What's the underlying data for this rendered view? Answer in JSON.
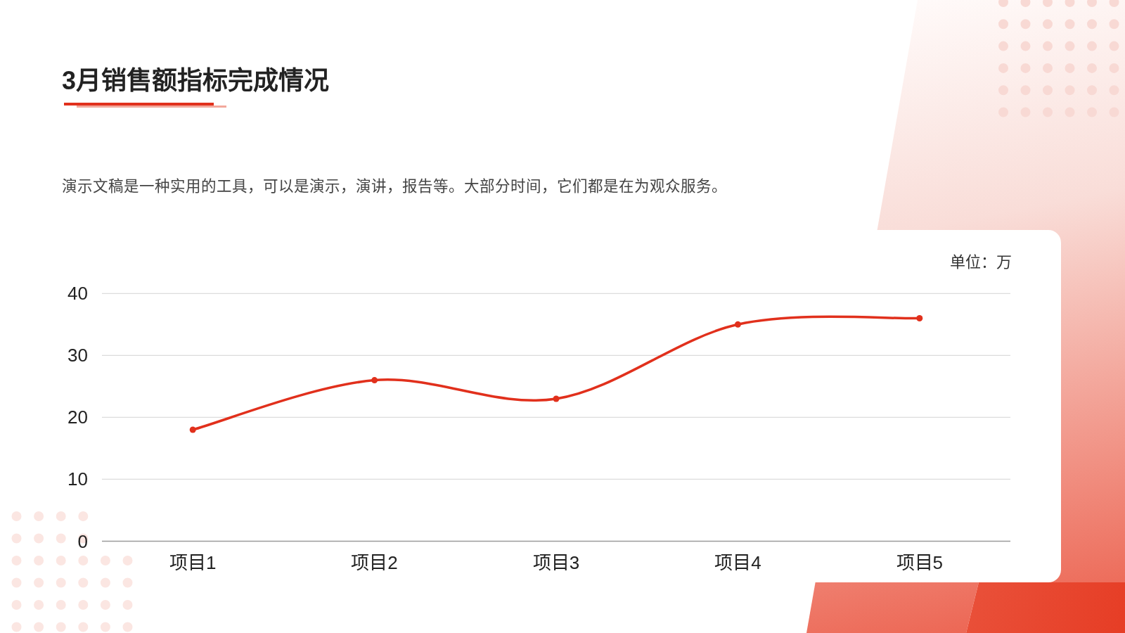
{
  "chart_data": {
    "type": "line",
    "title": "3月销售额指标完成情况",
    "subtitle": "演示文稿是一种实用的工具，可以是演示，演讲，报告等。大部分时间，它们都是在为观众服务。",
    "annotations": [
      "单位：万"
    ],
    "categories": [
      "项目1",
      "项目2",
      "项目3",
      "项目4",
      "项目5"
    ],
    "series": [
      {
        "color": "#e1301c",
        "values": [
          18,
          26,
          23,
          35,
          36
        ]
      }
    ],
    "ylim": [
      0,
      40
    ],
    "yticks": [
      0,
      10,
      20,
      30,
      40
    ],
    "grid": "y",
    "marker": "circle",
    "line_style": "solid"
  }
}
